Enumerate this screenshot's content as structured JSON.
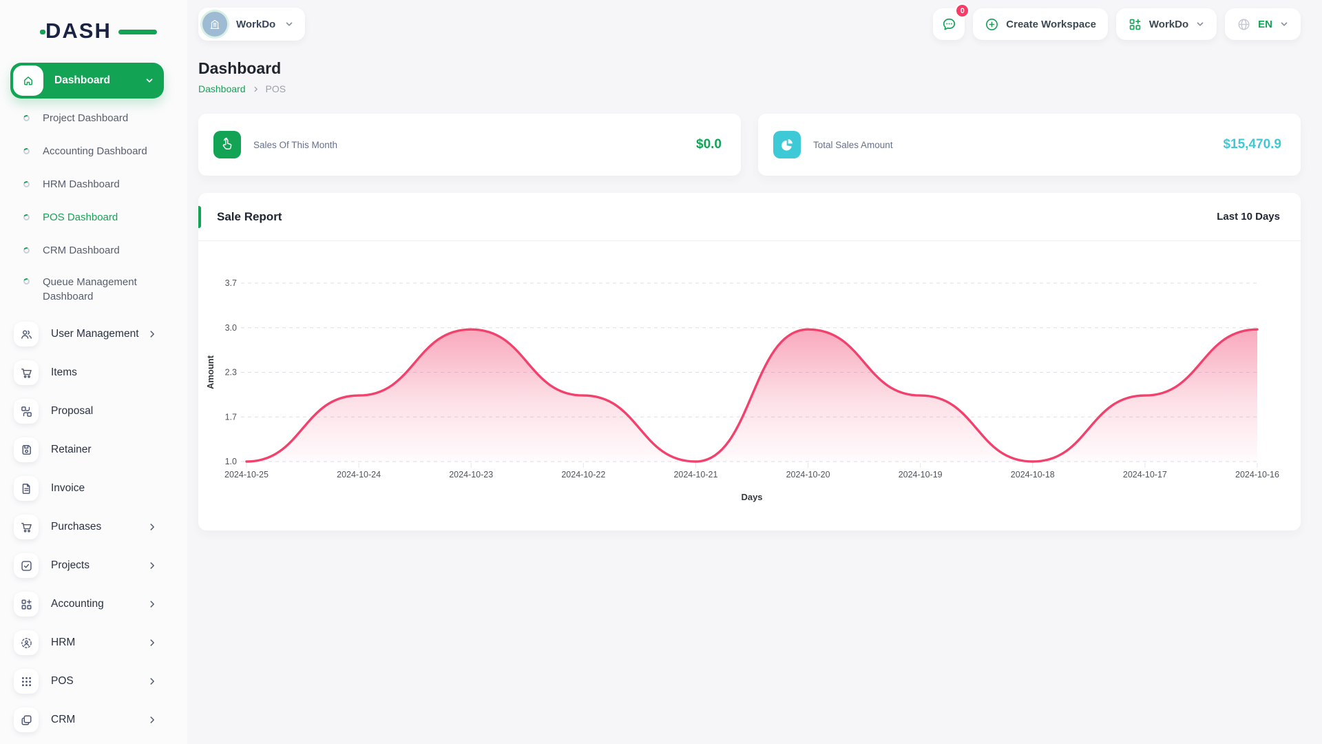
{
  "brand": {
    "logo_text": "DASH",
    "accent_color": "#12A454"
  },
  "header": {
    "workspace_pill": {
      "label": "WorkDo",
      "icon": "building-icon"
    },
    "messages": {
      "badge": "0",
      "icon": "chat-icon"
    },
    "create_workspace": {
      "label": "Create Workspace",
      "icon": "plus-circle-icon"
    },
    "workspace_switcher": {
      "label": "WorkDo",
      "icon": "grid-plus-icon"
    },
    "language": {
      "label": "EN",
      "icon": "globe-icon"
    }
  },
  "sidebar": {
    "active": {
      "label": "Dashboard",
      "icon": "home-icon"
    },
    "dashboard_children": [
      {
        "label": "Project Dashboard",
        "active": false
      },
      {
        "label": "Accounting Dashboard",
        "active": false
      },
      {
        "label": "HRM Dashboard",
        "active": false
      },
      {
        "label": "POS Dashboard",
        "active": true
      },
      {
        "label": "CRM Dashboard",
        "active": false
      },
      {
        "label": "Queue Management Dashboard",
        "active": false
      }
    ],
    "items": [
      {
        "label": "User Management",
        "icon": "users-icon",
        "expandable": true
      },
      {
        "label": "Items",
        "icon": "cart-icon",
        "expandable": false
      },
      {
        "label": "Proposal",
        "icon": "proposal-icon",
        "expandable": false
      },
      {
        "label": "Retainer",
        "icon": "retainer-icon",
        "expandable": false
      },
      {
        "label": "Invoice",
        "icon": "invoice-icon",
        "expandable": false
      },
      {
        "label": "Purchases",
        "icon": "cart-icon",
        "expandable": true
      },
      {
        "label": "Projects",
        "icon": "check-square-icon",
        "expandable": true
      },
      {
        "label": "Accounting",
        "icon": "grid-plus-icon",
        "expandable": true
      },
      {
        "label": "HRM",
        "icon": "hrm-icon",
        "expandable": true
      },
      {
        "label": "POS",
        "icon": "dots-grid-icon",
        "expandable": true
      },
      {
        "label": "CRM",
        "icon": "crm-icon",
        "expandable": true
      }
    ]
  },
  "page": {
    "title": "Dashboard",
    "breadcrumb": [
      {
        "label": "Dashboard",
        "link": true
      },
      {
        "label": "POS",
        "link": false
      }
    ]
  },
  "stats": [
    {
      "label": "Sales Of This Month",
      "value": "$0.0",
      "icon": "tap-icon",
      "color": "#12A454"
    },
    {
      "label": "Total Sales Amount",
      "value": "$15,470.9",
      "icon": "pie-icon",
      "color": "#3EC9D6"
    }
  ],
  "chart_card": {
    "title": "Sale Report",
    "range_label": "Last 10 Days"
  },
  "chart_data": {
    "type": "area",
    "title": "Sale Report",
    "x": [
      "2024-10-25",
      "2024-10-24",
      "2024-10-23",
      "2024-10-22",
      "2024-10-21",
      "2024-10-20",
      "2024-10-19",
      "2024-10-18",
      "2024-10-17",
      "2024-10-16"
    ],
    "values": [
      1.0,
      2.0,
      3.0,
      2.0,
      1.0,
      3.0,
      2.0,
      1.0,
      2.0,
      3.0
    ],
    "xlabel": "Days",
    "ylabel": "Amount",
    "ytick_labels": [
      "1.0",
      "1.7",
      "2.3",
      "3.0",
      "3.7"
    ],
    "ylim": [
      1.0,
      3.7
    ],
    "line_color": "#f1416c",
    "grid": true,
    "legend_position": "none"
  }
}
